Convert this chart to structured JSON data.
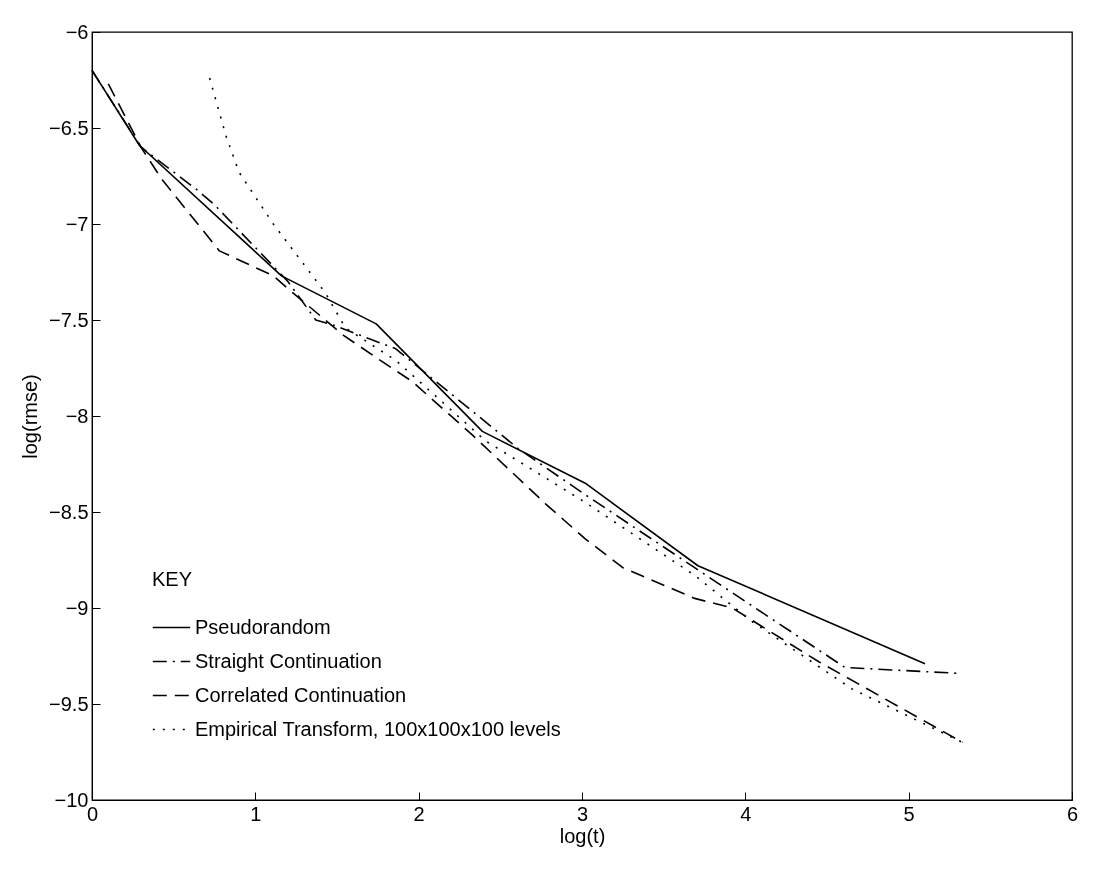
{
  "chart_data": {
    "type": "line",
    "xlabel": "log(t)",
    "ylabel": "log(rmse)",
    "xlim": [
      0,
      6
    ],
    "ylim": [
      -10,
      -6
    ],
    "xticks": [
      0,
      1,
      2,
      3,
      4,
      5,
      6
    ],
    "yticks": [
      -10,
      -9.5,
      -9,
      -8.5,
      -8,
      -7.5,
      -7,
      -6.5,
      -6
    ],
    "grid": false,
    "legend": "bottom left",
    "legend_title": "KEY",
    "marker": "none",
    "series": [
      {
        "name": "Pseudorandom",
        "color": "#000000",
        "line_style": "solid",
        "x": [
          0,
          0.29,
          1.16,
          1.74,
          2.39,
          3.02,
          3.71,
          5.1
        ],
        "values": [
          -6.2,
          -6.59,
          -7.27,
          -7.52,
          -8.08,
          -8.35,
          -8.78,
          -9.29
        ]
      },
      {
        "name": "Straight Continuation",
        "color": "#000000",
        "line_style": "dashdot",
        "x": [
          0,
          0.3,
          0.64,
          0.75,
          1.2,
          1.37,
          1.49,
          1.86,
          2.61,
          3.02,
          3.69,
          4.61,
          5.3
        ],
        "values": [
          -6.2,
          -6.6,
          -6.82,
          -6.9,
          -7.3,
          -7.5,
          -7.53,
          -7.65,
          -8.17,
          -8.41,
          -8.79,
          -9.31,
          -9.34
        ]
      },
      {
        "name": "Correlated Continuation",
        "color": "#000000",
        "line_style": "dashed",
        "x": [
          0.1,
          0.3,
          0.43,
          0.78,
          1.11,
          1.19,
          1.54,
          1.8,
          1.96,
          2.33,
          2.78,
          3.02,
          3.25,
          3.69,
          3.92,
          4.45,
          5.33
        ],
        "values": [
          -6.27,
          -6.6,
          -6.77,
          -7.14,
          -7.27,
          -7.33,
          -7.58,
          -7.73,
          -7.82,
          -8.1,
          -8.46,
          -8.64,
          -8.79,
          -8.95,
          -9.0,
          -9.28,
          -9.7
        ]
      },
      {
        "name": "Empirical Transform, 100x100x100 levels",
        "color": "#000000",
        "line_style": "dotted",
        "x": [
          0.72,
          0.82,
          0.9,
          1.11,
          1.43,
          1.55,
          1.86,
          2.41,
          3.02,
          3.69,
          4.04,
          4.65,
          5.33
        ],
        "values": [
          -6.24,
          -6.54,
          -6.73,
          -7.0,
          -7.36,
          -7.54,
          -7.71,
          -8.13,
          -8.45,
          -8.83,
          -9.07,
          -9.42,
          -9.7
        ]
      }
    ]
  }
}
